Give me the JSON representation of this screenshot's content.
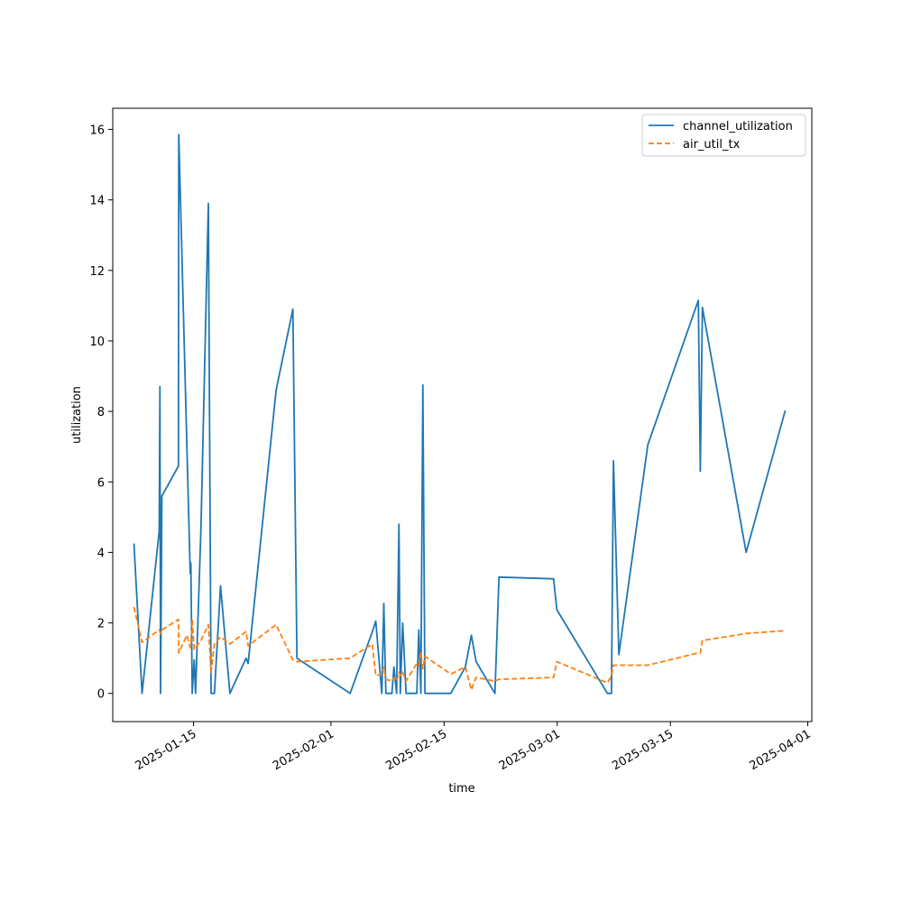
{
  "chart_data": {
    "type": "line",
    "title": "",
    "xlabel": "time",
    "ylabel": "utilization",
    "xlim": [
      "2025-01-05",
      "2025-04-01T12:00"
    ],
    "ylim": [
      -0.8,
      16.6
    ],
    "x_ticks": [
      "2025-01-15",
      "2025-02-01",
      "2025-02-15",
      "2025-03-01",
      "2025-03-15",
      "2025-04-01"
    ],
    "y_ticks": [
      0,
      2,
      4,
      6,
      8,
      10,
      12,
      14,
      16
    ],
    "grid": false,
    "legend_position": "top-right",
    "series": [
      {
        "name": "channel_utilization",
        "color": "#1f77b4",
        "style": "solid",
        "points": [
          [
            "2025-01-07T15:00",
            4.25
          ],
          [
            "2025-01-08T15:00",
            0.0
          ],
          [
            "2025-01-10T18:00",
            4.6
          ],
          [
            "2025-01-10T20:00",
            8.7
          ],
          [
            "2025-01-10T22:00",
            0.0
          ],
          [
            "2025-01-11T02:00",
            5.6
          ],
          [
            "2025-01-13T03:00",
            6.45
          ],
          [
            "2025-01-13T04:00",
            15.85
          ],
          [
            "2025-01-14T04:00",
            7.1
          ],
          [
            "2025-01-14T14:00",
            3.4
          ],
          [
            "2025-01-14T16:00",
            3.7
          ],
          [
            "2025-01-14T20:00",
            0.0
          ],
          [
            "2025-01-15T02:00",
            0.95
          ],
          [
            "2025-01-15T06:00",
            0.0
          ],
          [
            "2025-01-15T22:00",
            4.7
          ],
          [
            "2025-01-16T20:00",
            13.9
          ],
          [
            "2025-01-17T04:00",
            0.0
          ],
          [
            "2025-01-17T14:00",
            0.0
          ],
          [
            "2025-01-18T08:00",
            3.05
          ],
          [
            "2025-01-19T12:00",
            0.0
          ],
          [
            "2025-01-21T12:00",
            1.0
          ],
          [
            "2025-01-21T18:00",
            0.85
          ],
          [
            "2025-01-25T05:00",
            8.6
          ],
          [
            "2025-01-27T07:00",
            10.9
          ],
          [
            "2025-01-27T19:00",
            1.0
          ],
          [
            "2025-02-03T09:00",
            0.0
          ],
          [
            "2025-02-06T03:00",
            1.75
          ],
          [
            "2025-02-06T13:00",
            2.05
          ],
          [
            "2025-02-07T07:00",
            0.0
          ],
          [
            "2025-02-07T13:00",
            2.55
          ],
          [
            "2025-02-07T19:00",
            0.0
          ],
          [
            "2025-02-08T13:00",
            0.0
          ],
          [
            "2025-02-08T19:00",
            0.75
          ],
          [
            "2025-02-09T03:00",
            0.0
          ],
          [
            "2025-02-09T10:00",
            4.8
          ],
          [
            "2025-02-09T14:00",
            0.0
          ],
          [
            "2025-02-09T21:00",
            2.0
          ],
          [
            "2025-02-10T07:00",
            0.0
          ],
          [
            "2025-02-11T15:00",
            0.0
          ],
          [
            "2025-02-11T21:00",
            1.8
          ],
          [
            "2025-02-12T03:00",
            0.0
          ],
          [
            "2025-02-12T09:00",
            8.75
          ],
          [
            "2025-02-12T15:00",
            0.0
          ],
          [
            "2025-02-15T20:00",
            0.0
          ],
          [
            "2025-02-17T15:00",
            0.75
          ],
          [
            "2025-02-18T09:00",
            1.65
          ],
          [
            "2025-02-18T23:00",
            0.9
          ],
          [
            "2025-02-21T07:00",
            0.0
          ],
          [
            "2025-02-21T19:00",
            3.3
          ],
          [
            "2025-02-28T13:00",
            3.25
          ],
          [
            "2025-02-28T23:00",
            2.37
          ],
          [
            "2025-03-07T05:00",
            0.0
          ],
          [
            "2025-03-07T17:00",
            0.0
          ],
          [
            "2025-03-07T23:00",
            6.6
          ],
          [
            "2025-03-08T15:00",
            1.1
          ],
          [
            "2025-03-12T05:00",
            7.05
          ],
          [
            "2025-03-18T11:00",
            11.15
          ],
          [
            "2025-03-18T17:00",
            6.3
          ],
          [
            "2025-03-18T23:00",
            10.95
          ],
          [
            "2025-03-24T09:00",
            4.0
          ],
          [
            "2025-03-29T05:00",
            8.02
          ]
        ]
      },
      {
        "name": "air_util_tx",
        "color": "#ff7f0e",
        "style": "dashed",
        "points": [
          [
            "2025-01-07T15:00",
            2.45
          ],
          [
            "2025-01-08T15:00",
            1.45
          ],
          [
            "2025-01-10T18:00",
            1.8
          ],
          [
            "2025-01-10T20:00",
            1.75
          ],
          [
            "2025-01-10T22:00",
            1.7
          ],
          [
            "2025-01-11T02:00",
            1.8
          ],
          [
            "2025-01-13T03:00",
            2.1
          ],
          [
            "2025-01-13T04:00",
            1.15
          ],
          [
            "2025-01-14T04:00",
            1.65
          ],
          [
            "2025-01-14T14:00",
            1.3
          ],
          [
            "2025-01-14T16:00",
            1.35
          ],
          [
            "2025-01-14T20:00",
            2.1
          ],
          [
            "2025-01-15T02:00",
            1.25
          ],
          [
            "2025-01-15T06:00",
            1.3
          ],
          [
            "2025-01-15T22:00",
            1.5
          ],
          [
            "2025-01-16T20:00",
            1.95
          ],
          [
            "2025-01-17T04:00",
            0.6
          ],
          [
            "2025-01-17T14:00",
            1.4
          ],
          [
            "2025-01-18T08:00",
            1.6
          ],
          [
            "2025-01-19T12:00",
            1.4
          ],
          [
            "2025-01-21T12:00",
            1.75
          ],
          [
            "2025-01-21T18:00",
            1.35
          ],
          [
            "2025-01-25T05:00",
            1.95
          ],
          [
            "2025-01-27T07:00",
            0.95
          ],
          [
            "2025-01-27T19:00",
            0.9
          ],
          [
            "2025-02-03T09:00",
            1.0
          ],
          [
            "2025-02-06T03:00",
            1.4
          ],
          [
            "2025-02-06T13:00",
            0.5
          ],
          [
            "2025-02-07T07:00",
            0.55
          ],
          [
            "2025-02-07T13:00",
            0.75
          ],
          [
            "2025-02-07T19:00",
            0.4
          ],
          [
            "2025-02-08T13:00",
            0.35
          ],
          [
            "2025-02-08T19:00",
            0.45
          ],
          [
            "2025-02-09T03:00",
            0.35
          ],
          [
            "2025-02-09T10:00",
            0.6
          ],
          [
            "2025-02-09T14:00",
            0.5
          ],
          [
            "2025-02-09T21:00",
            0.6
          ],
          [
            "2025-02-10T07:00",
            0.35
          ],
          [
            "2025-02-11T15:00",
            0.85
          ],
          [
            "2025-02-11T21:00",
            0.8
          ],
          [
            "2025-02-12T03:00",
            1.15
          ],
          [
            "2025-02-12T09:00",
            0.7
          ],
          [
            "2025-02-12T15:00",
            1.05
          ],
          [
            "2025-02-15T20:00",
            0.55
          ],
          [
            "2025-02-17T15:00",
            0.75
          ],
          [
            "2025-02-18T09:00",
            0.1
          ],
          [
            "2025-02-18T23:00",
            0.45
          ],
          [
            "2025-02-21T07:00",
            0.35
          ],
          [
            "2025-02-21T19:00",
            0.4
          ],
          [
            "2025-02-28T13:00",
            0.45
          ],
          [
            "2025-02-28T23:00",
            0.9
          ],
          [
            "2025-03-07T05:00",
            0.3
          ],
          [
            "2025-03-07T17:00",
            0.5
          ],
          [
            "2025-03-07T23:00",
            0.8
          ],
          [
            "2025-03-08T15:00",
            0.8
          ],
          [
            "2025-03-12T05:00",
            0.8
          ],
          [
            "2025-03-18T11:00",
            1.15
          ],
          [
            "2025-03-18T17:00",
            1.15
          ],
          [
            "2025-03-18T23:00",
            1.5
          ],
          [
            "2025-03-24T09:00",
            1.7
          ],
          [
            "2025-03-29T05:00",
            1.78
          ]
        ]
      }
    ]
  }
}
